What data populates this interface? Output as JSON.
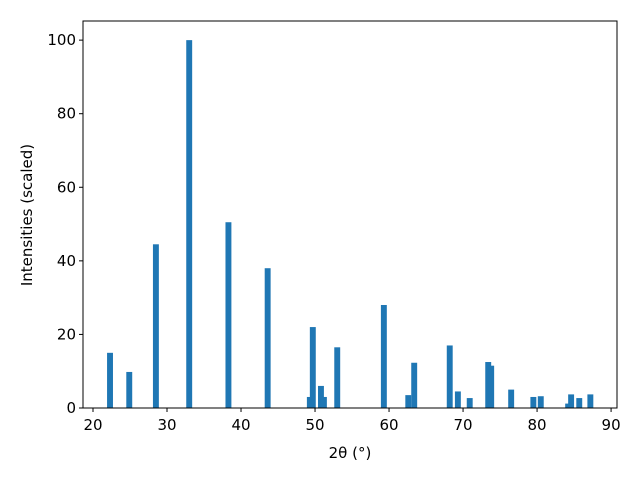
{
  "chart_data": {
    "type": "bar",
    "x_label": "2θ (°)",
    "y_label": "Intensities (scaled)",
    "color": "#1f77b4",
    "bar_width": 0.8,
    "x": [
      22.3,
      24.9,
      28.5,
      33.0,
      38.3,
      43.6,
      49.3,
      49.7,
      50.8,
      51.2,
      53.0,
      59.3,
      62.6,
      63.4,
      68.2,
      69.3,
      70.9,
      73.4,
      73.8,
      76.5,
      79.5,
      80.5,
      84.2,
      84.6,
      85.7,
      87.2
    ],
    "values": [
      15,
      9.8,
      44.5,
      100,
      50.5,
      38,
      3,
      22,
      6,
      3,
      16.5,
      28,
      3.5,
      12.3,
      17,
      4.5,
      2.7,
      12.5,
      11.5,
      5,
      3,
      3.2,
      1.2,
      3.7,
      2.7,
      3.7
    ],
    "xlim": [
      18.65,
      90.8
    ],
    "ylim": [
      0,
      105.2
    ],
    "xticks": [
      20,
      30,
      40,
      50,
      60,
      70,
      80,
      90
    ],
    "yticks": [
      0,
      20,
      40,
      60,
      80,
      100
    ]
  }
}
